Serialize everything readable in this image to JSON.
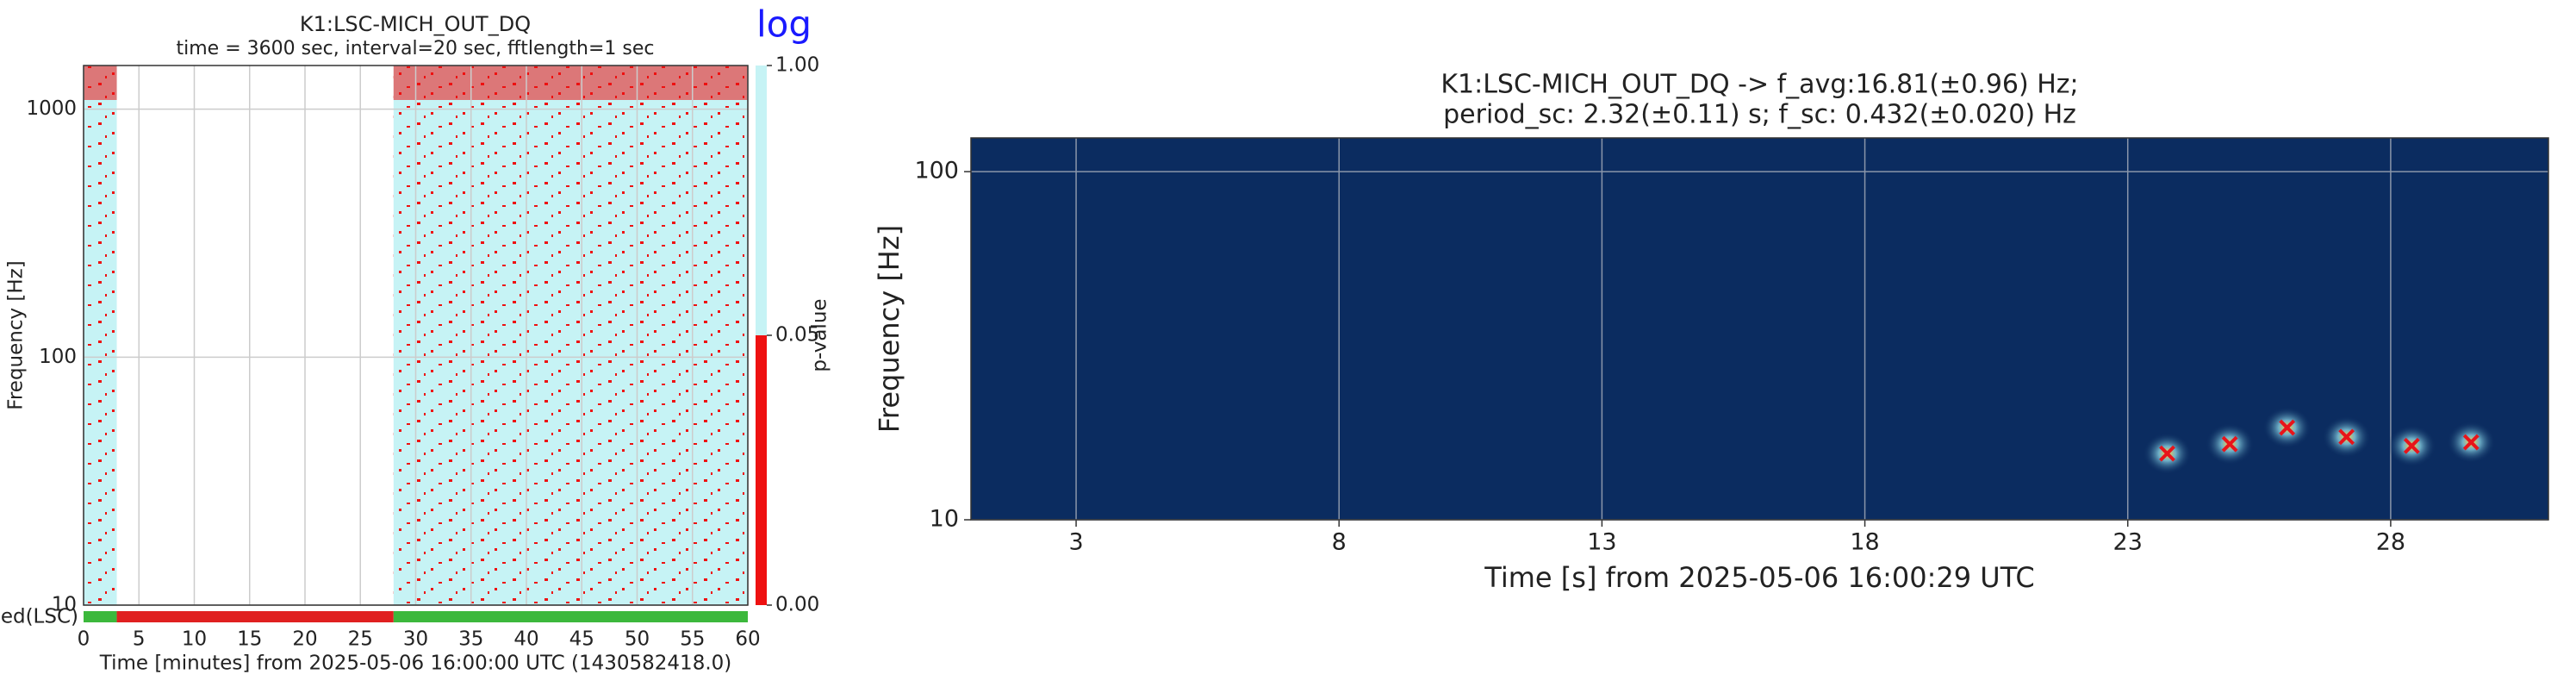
{
  "chart_data": [
    {
      "type": "pvalue_spectrogram",
      "title": "K1:LSC-MICH_OUT_DQ",
      "subtitle": "time = 3600 sec, interval=20 sec, fftlength=1 sec",
      "annotation": "log",
      "xlabel": "Time [minutes] from 2025-05-06 16:00:00 UTC (1430582418.0)",
      "ylabel": "Frequency [Hz]",
      "xlim": [
        0,
        60
      ],
      "xticks": [
        0,
        5,
        10,
        15,
        20,
        25,
        30,
        35,
        40,
        45,
        50,
        55,
        60
      ],
      "ylim": [
        10,
        1500
      ],
      "yticks": [
        10,
        100,
        1000
      ],
      "log_y": true,
      "grid": true,
      "data_segments": [
        {
          "start": 0,
          "end": 3
        },
        {
          "start": 28,
          "end": 60
        }
      ],
      "fill_color": "#c6f3f5",
      "excess_color": "#ee1111",
      "colorbar_label": "p-value",
      "colorbar_ticks": [
        {
          "value": 0,
          "label": "0.00"
        },
        {
          "value": 0.05,
          "label": "0.05"
        },
        {
          "value": 1,
          "label": "1.00"
        }
      ],
      "segment_label": "ed(LSC)",
      "segments": [
        {
          "start": 0,
          "end": 3,
          "color": "#3cb83c"
        },
        {
          "start": 3,
          "end": 28,
          "color": "#e02020"
        },
        {
          "start": 28,
          "end": 60,
          "color": "#3cb83c"
        }
      ]
    },
    {
      "type": "spectrogram",
      "title": "K1:LSC-MICH_OUT_DQ -> f_avg:16.81(±0.96) Hz;",
      "subtitle": "period_sc: 2.32(±0.11) s; f_sc: 0.432(±0.020) Hz",
      "xlabel": "Time [s] from 2025-05-06 16:00:29 UTC",
      "ylabel": "Frequency [Hz]",
      "xlim": [
        1,
        31
      ],
      "xticks": [
        3,
        8,
        13,
        18,
        23,
        28
      ],
      "ylim": [
        10,
        125
      ],
      "yticks": [
        10,
        100
      ],
      "log_y": true,
      "grid": true,
      "background": "#0b2c60",
      "markers": {
        "color": "#e8141a",
        "x": [
          23.75,
          24.94,
          26.03,
          27.16,
          28.4,
          29.53
        ],
        "y": [
          15.5,
          16.5,
          18.4,
          17.3,
          16.3,
          16.7
        ]
      }
    }
  ]
}
